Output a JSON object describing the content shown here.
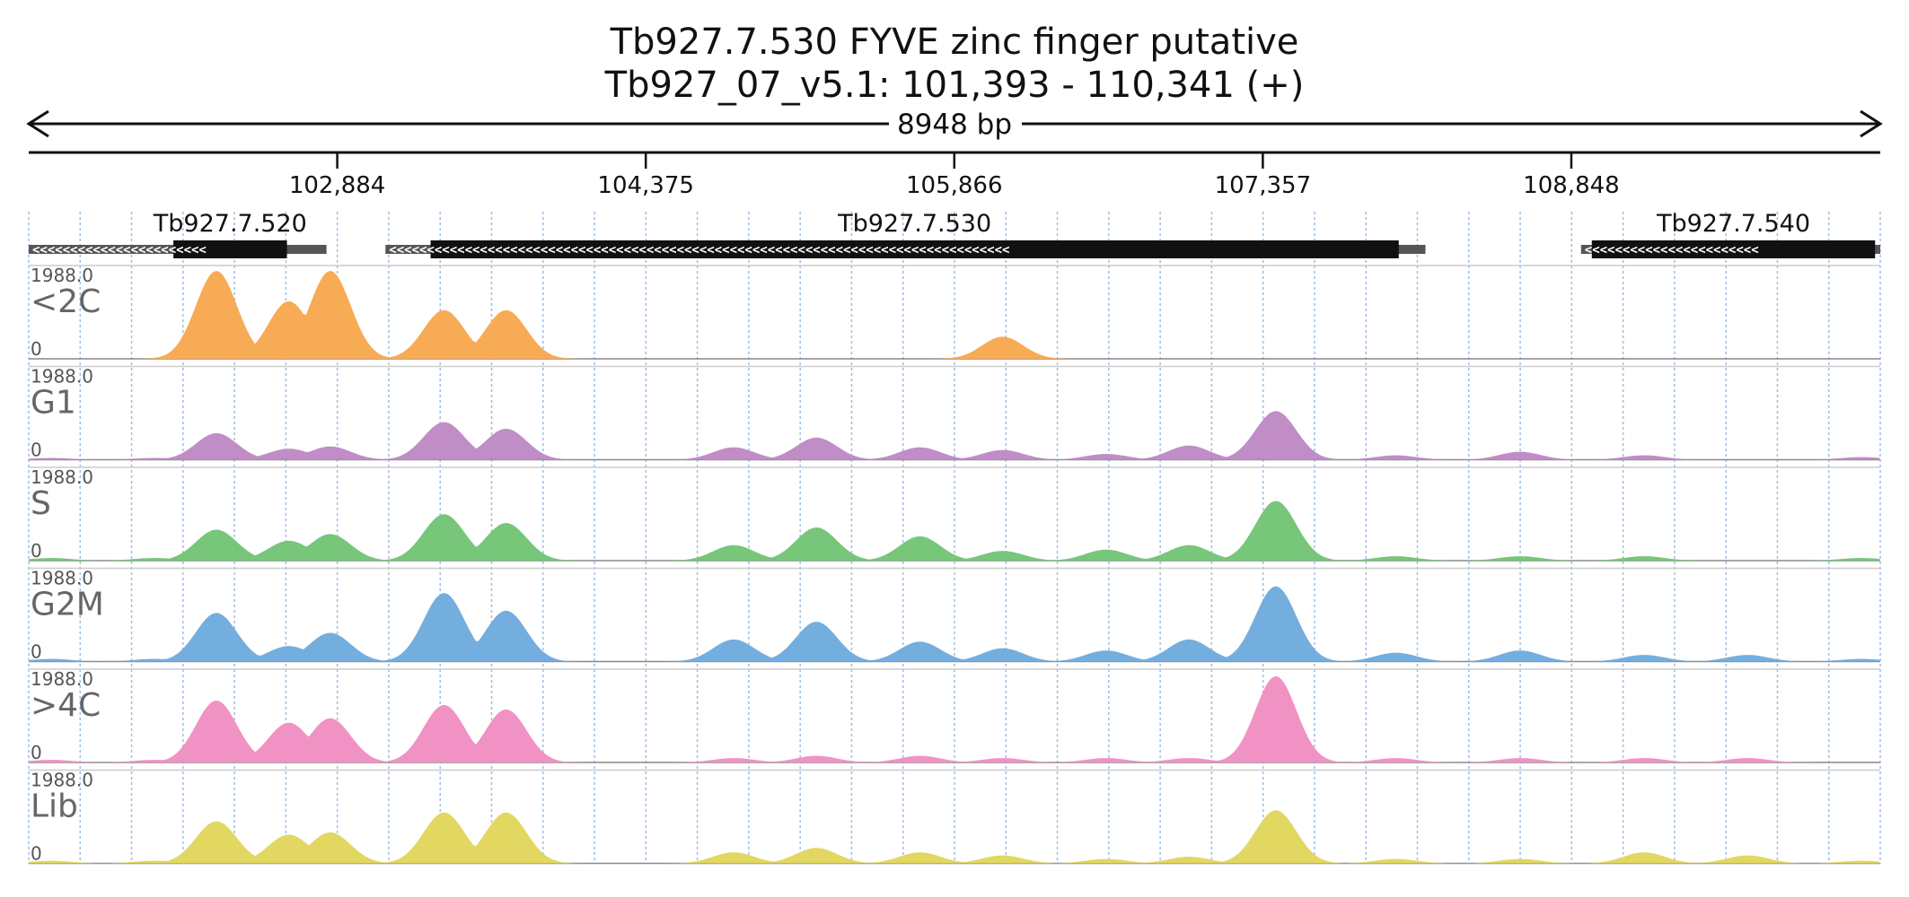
{
  "chart_data": {
    "type": "area",
    "title": "Tb927.7.530  FYVE zinc finger  putative",
    "subtitle": "Tb927_07_v5.1: 101,393 - 110,341 (+)",
    "span_label": "8948 bp",
    "xlim": [
      101393,
      110341
    ],
    "ticks": [
      102884,
      104375,
      105866,
      107357,
      108848
    ],
    "tick_labels": [
      "102,884",
      "104,375",
      "105,866",
      "107,357",
      "108,848"
    ],
    "genes": [
      {
        "name": "Tb927.7.520",
        "start": 101393,
        "end": 102832,
        "cds_start": 102092,
        "cds_end": 102641,
        "strand": "-"
      },
      {
        "name": "Tb927.7.530",
        "start": 103117,
        "end": 108143,
        "cds_start": 103335,
        "cds_end": 108014,
        "strand": "-"
      },
      {
        "name": "Tb927.7.540",
        "start": 108895,
        "end": 110341,
        "cds_start": 108947,
        "cds_end": 110316,
        "strand": "-"
      }
    ],
    "ylim": [
      0,
      1988.0
    ],
    "ymax_label": "1988.0",
    "ymin_label": "0",
    "x_peak_centers": [
      101500,
      102000,
      102300,
      102650,
      102850,
      103250,
      103400,
      103700,
      104000,
      104200,
      104800,
      105200,
      105700,
      106100,
      106600,
      107000,
      107420,
      108000,
      108600,
      109200,
      109700,
      110250
    ],
    "series": [
      {
        "name": "<2C",
        "color": "#F8AB55",
        "values": [
          0,
          0,
          1988,
          1300,
          1988,
          0,
          1100,
          1100,
          0,
          0,
          0,
          0,
          0,
          500,
          0,
          0,
          0,
          0,
          0,
          0,
          0,
          0
        ]
      },
      {
        "name": "G1",
        "color": "#C08DC7",
        "values": [
          40,
          40,
          600,
          250,
          300,
          0,
          850,
          700,
          0,
          0,
          280,
          500,
          280,
          220,
          130,
          320,
          1100,
          100,
          180,
          100,
          0,
          60
        ]
      },
      {
        "name": "S",
        "color": "#77C67A",
        "values": [
          60,
          60,
          700,
          450,
          600,
          0,
          1050,
          850,
          0,
          0,
          350,
          750,
          550,
          220,
          250,
          350,
          1350,
          100,
          100,
          100,
          0,
          60
        ]
      },
      {
        "name": "G2M",
        "color": "#74AEDF",
        "values": [
          60,
          60,
          1100,
          350,
          650,
          0,
          1550,
          1150,
          0,
          0,
          500,
          900,
          450,
          300,
          250,
          500,
          1700,
          200,
          250,
          150,
          150,
          60
        ]
      },
      {
        "name": ">4C",
        "color": "#F192C4",
        "values": [
          60,
          60,
          1400,
          900,
          1000,
          0,
          1300,
          1200,
          0,
          0,
          100,
          150,
          150,
          100,
          100,
          100,
          1950,
          100,
          100,
          100,
          100,
          0
        ]
      },
      {
        "name": "Lib",
        "color": "#E2D760",
        "values": [
          60,
          60,
          950,
          650,
          700,
          0,
          1150,
          1150,
          0,
          0,
          250,
          350,
          250,
          180,
          100,
          150,
          1200,
          100,
          100,
          250,
          180,
          60
        ]
      }
    ]
  }
}
